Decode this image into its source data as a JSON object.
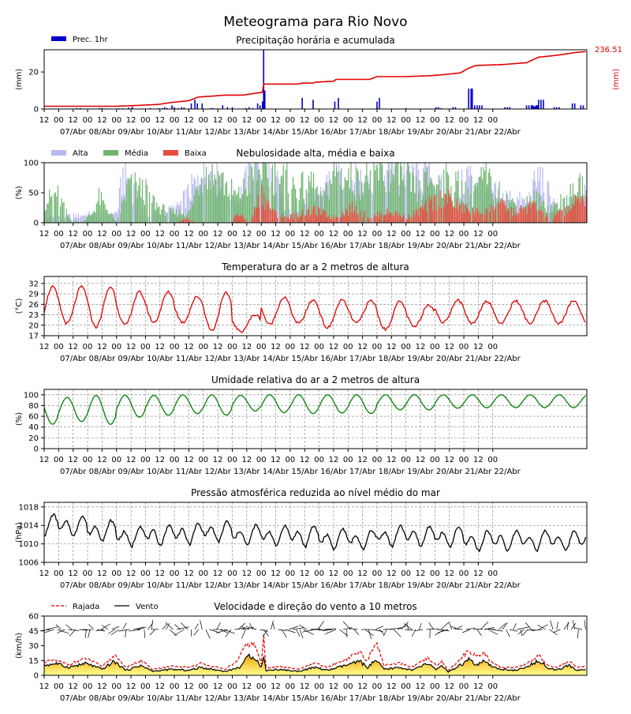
{
  "page": {
    "title": "Meteograma para Rio Novo"
  },
  "time_axis": {
    "start": "2025-04-06 12:00",
    "step_hours": 1,
    "hour_ticks": [
      "12",
      "00",
      "12",
      "00",
      "12",
      "00",
      "12",
      "00",
      "12",
      "00",
      "12",
      "00",
      "12",
      "00",
      "12",
      "00",
      "12",
      "00",
      "12",
      "00",
      "12",
      "00",
      "12",
      "00",
      "12",
      "00",
      "12",
      "00",
      "12",
      "00",
      "12",
      "00"
    ],
    "day_labels": [
      "07/Abr",
      "08/Abr",
      "09/Abr",
      "10/Abr",
      "11/Abr",
      "12/Abr",
      "13/Abr",
      "14/Abr",
      "15/Abr",
      "16/Abr",
      "17/Abr",
      "18/Abr",
      "19/Abr",
      "20/Abr",
      "21/Abr",
      "22/Abr"
    ]
  },
  "chart_data": [
    {
      "id": "precip",
      "type": "bar",
      "title": "Precipitação horária e acumulada",
      "ylabel": "(mm)",
      "ylabel_right": "(mm)",
      "ylim": [
        0,
        32
      ],
      "yticks": [
        0,
        20
      ],
      "grid": false,
      "legend": [
        "Prec. 1hr"
      ],
      "accum_end_label": "236.51",
      "colors": {
        "bars": "#0000cc",
        "accum": "#e00000",
        "right_label": "#e00000"
      },
      "bars": [
        [
          27,
          0.5
        ],
        [
          30,
          0.5
        ],
        [
          46,
          0.5
        ],
        [
          48,
          0.5
        ],
        [
          50,
          0.3
        ],
        [
          62,
          0.4
        ],
        [
          65,
          0.4
        ],
        [
          70,
          0.8
        ],
        [
          73,
          1.2
        ],
        [
          88,
          0.5
        ],
        [
          95,
          0.5
        ],
        [
          98,
          0.5
        ],
        [
          100,
          1.0
        ],
        [
          102,
          0.5
        ],
        [
          106,
          2
        ],
        [
          108,
          1
        ],
        [
          111,
          0.5
        ],
        [
          114,
          1
        ],
        [
          116,
          0.8
        ],
        [
          122,
          3
        ],
        [
          125,
          5
        ],
        [
          127,
          3
        ],
        [
          131,
          3
        ],
        [
          138,
          0.5
        ],
        [
          140,
          0.5
        ],
        [
          148,
          2
        ],
        [
          152,
          1
        ],
        [
          156,
          1
        ],
        [
          167,
          0.5
        ],
        [
          170,
          1
        ],
        [
          173,
          0.5
        ],
        [
          177,
          3
        ],
        [
          179,
          2
        ],
        [
          181,
          4
        ],
        [
          182,
          32
        ],
        [
          183,
          10
        ],
        [
          214,
          6
        ],
        [
          223,
          5
        ],
        [
          241,
          4
        ],
        [
          244,
          6
        ],
        [
          276,
          4
        ],
        [
          278,
          6
        ],
        [
          300,
          0.5
        ],
        [
          325,
          1
        ],
        [
          327,
          1
        ],
        [
          329,
          0.5
        ],
        [
          339,
          1
        ],
        [
          341,
          1
        ],
        [
          352,
          11
        ],
        [
          354,
          11
        ],
        [
          355,
          11
        ],
        [
          357,
          2
        ],
        [
          359,
          2
        ],
        [
          361,
          2
        ],
        [
          363,
          2
        ],
        [
          382,
          1
        ],
        [
          384,
          1
        ],
        [
          386,
          1
        ],
        [
          400,
          2
        ],
        [
          402,
          2
        ],
        [
          404,
          2
        ],
        [
          405,
          2
        ],
        [
          406,
          1.5
        ],
        [
          407,
          1.5
        ],
        [
          408,
          2
        ],
        [
          409,
          2
        ],
        [
          410,
          5
        ],
        [
          412,
          5
        ],
        [
          414,
          5
        ],
        [
          423,
          1
        ],
        [
          425,
          1
        ],
        [
          427,
          1
        ],
        [
          438,
          3
        ],
        [
          440,
          3
        ],
        [
          445,
          2
        ],
        [
          447,
          2
        ]
      ],
      "accum": [
        [
          0,
          1.5
        ],
        [
          60,
          1.5
        ],
        [
          80,
          2.0
        ],
        [
          95,
          2.5
        ],
        [
          105,
          3.5
        ],
        [
          120,
          4.5
        ],
        [
          128,
          6.5
        ],
        [
          140,
          7
        ],
        [
          150,
          7.5
        ],
        [
          165,
          7.5
        ],
        [
          175,
          8.5
        ],
        [
          181,
          9
        ],
        [
          182,
          13.5
        ],
        [
          210,
          13.5
        ],
        [
          214,
          14
        ],
        [
          223,
          14
        ],
        [
          225,
          14.5
        ],
        [
          240,
          15
        ],
        [
          242,
          16
        ],
        [
          270,
          16
        ],
        [
          276,
          17.5
        ],
        [
          300,
          17.5
        ],
        [
          320,
          18
        ],
        [
          330,
          18.5
        ],
        [
          345,
          19.5
        ],
        [
          352,
          22
        ],
        [
          358,
          23.5
        ],
        [
          380,
          24
        ],
        [
          400,
          25
        ],
        [
          410,
          28
        ],
        [
          425,
          29
        ],
        [
          440,
          30.5
        ],
        [
          449,
          31
        ]
      ]
    },
    {
      "id": "clouds",
      "type": "bar",
      "title": "Nebulosidade alta, média e baixa",
      "ylabel": "(%)",
      "ylim": [
        0,
        100
      ],
      "yticks": [
        0,
        50,
        100
      ],
      "grid": false,
      "legend": [
        "Alta",
        "Média",
        "Baixa"
      ],
      "colors": {
        "alta": "#b8b8f0",
        "media": "#6fb46f",
        "baixa": "#e64b3c"
      },
      "alta_keys": [
        [
          0,
          10
        ],
        [
          60,
          20
        ],
        [
          65,
          95
        ],
        [
          75,
          60
        ],
        [
          85,
          10
        ],
        [
          110,
          30
        ],
        [
          120,
          60
        ],
        [
          130,
          100
        ],
        [
          145,
          100
        ],
        [
          160,
          40
        ],
        [
          170,
          100
        ],
        [
          190,
          100
        ],
        [
          200,
          20
        ],
        [
          230,
          60
        ],
        [
          240,
          100
        ],
        [
          260,
          90
        ],
        [
          280,
          100
        ],
        [
          300,
          100
        ],
        [
          320,
          90
        ],
        [
          340,
          40
        ],
        [
          350,
          100
        ],
        [
          370,
          60
        ],
        [
          400,
          40
        ],
        [
          410,
          95
        ],
        [
          425,
          30
        ],
        [
          440,
          40
        ],
        [
          449,
          60
        ]
      ],
      "media_keys": [
        [
          0,
          40
        ],
        [
          10,
          60
        ],
        [
          20,
          10
        ],
        [
          30,
          0
        ],
        [
          40,
          20
        ],
        [
          45,
          50
        ],
        [
          60,
          0
        ],
        [
          70,
          80
        ],
        [
          85,
          60
        ],
        [
          95,
          30
        ],
        [
          105,
          20
        ],
        [
          120,
          20
        ],
        [
          130,
          100
        ],
        [
          145,
          90
        ],
        [
          160,
          50
        ],
        [
          175,
          100
        ],
        [
          195,
          100
        ],
        [
          210,
          60
        ],
        [
          220,
          90
        ],
        [
          230,
          40
        ],
        [
          240,
          100
        ],
        [
          260,
          80
        ],
        [
          275,
          100
        ],
        [
          295,
          100
        ],
        [
          310,
          60
        ],
        [
          320,
          90
        ],
        [
          340,
          80
        ],
        [
          350,
          60
        ],
        [
          365,
          90
        ],
        [
          380,
          50
        ],
        [
          395,
          30
        ],
        [
          405,
          50
        ],
        [
          420,
          30
        ],
        [
          440,
          60
        ],
        [
          449,
          80
        ]
      ],
      "baixa_keys": [
        [
          0,
          0
        ],
        [
          110,
          0
        ],
        [
          118,
          10
        ],
        [
          125,
          0
        ],
        [
          155,
          0
        ],
        [
          160,
          20
        ],
        [
          170,
          0
        ],
        [
          180,
          60
        ],
        [
          190,
          20
        ],
        [
          200,
          10
        ],
        [
          215,
          20
        ],
        [
          225,
          25
        ],
        [
          240,
          10
        ],
        [
          255,
          30
        ],
        [
          270,
          10
        ],
        [
          280,
          20
        ],
        [
          290,
          20
        ],
        [
          300,
          10
        ],
        [
          315,
          30
        ],
        [
          330,
          55
        ],
        [
          345,
          30
        ],
        [
          360,
          20
        ],
        [
          375,
          40
        ],
        [
          390,
          20
        ],
        [
          405,
          35
        ],
        [
          420,
          10
        ],
        [
          435,
          30
        ],
        [
          449,
          55
        ]
      ]
    },
    {
      "id": "temperature",
      "type": "line",
      "title": "Temperatura do ar a 2 metros de altura",
      "ylabel": "(°C)",
      "ylim": [
        17,
        34
      ],
      "yticks": [
        17,
        20,
        23,
        26,
        29,
        32
      ],
      "grid": true,
      "colors": {
        "line": "#e00000"
      },
      "daily_max": [
        31.0,
        31.0,
        31.0,
        29.5,
        29.5,
        28.2,
        29.2,
        23.0,
        28.0,
        27.2,
        27.2,
        27.0,
        26.8,
        26.0,
        27.2,
        27.0
      ],
      "daily_min": [
        19.7,
        20.5,
        19.5,
        20.0,
        20.8,
        20.8,
        18.5,
        18.2,
        20.2,
        20.5,
        19.2,
        20.6,
        18.8,
        19.5,
        20.8,
        20.5
      ],
      "start_value": 25.0
    },
    {
      "id": "humidity",
      "type": "line",
      "title": "Umidade relativa do ar a 2 metros de altura",
      "ylabel": "(%)",
      "ylim": [
        0,
        110
      ],
      "yticks": [
        0,
        20,
        40,
        60,
        80,
        100
      ],
      "grid": true,
      "colors": {
        "line": "#008000"
      },
      "daily_min": [
        45,
        50,
        45,
        58,
        62,
        65,
        62,
        70,
        67,
        65,
        66,
        65,
        72,
        72,
        75,
        76
      ],
      "daily_max": [
        95,
        95,
        99,
        99,
        99,
        100,
        100,
        99,
        100,
        100,
        100,
        100,
        100,
        100,
        100,
        100
      ],
      "start_value": 72
    },
    {
      "id": "pressure",
      "type": "line",
      "title": "Pressão atmosférica reduzida ao nível médio do mar",
      "ylabel": "(hPa)",
      "ylim": [
        1006,
        1019
      ],
      "yticks": [
        1006,
        1010,
        1014,
        1018
      ],
      "grid": true,
      "colors": {
        "line": "#000000"
      },
      "daily_mean": [
        1014.3,
        1014.0,
        1013.0,
        1011.8,
        1012.0,
        1012.3,
        1012.8,
        1012.0,
        1011.9,
        1011.8,
        1011.2,
        1011.0,
        1011.8,
        1011.8,
        1011.6,
        1010.8
      ],
      "amplitude": 2.2,
      "start_value": 1016.8
    },
    {
      "id": "wind",
      "type": "area",
      "title": "Velocidade e direção do vento a 10 metros",
      "ylabel": "(km/h)",
      "ylim": [
        0,
        60
      ],
      "yticks": [
        0,
        15,
        30,
        45,
        60
      ],
      "grid": false,
      "legend": [
        "Rajada",
        "Vento"
      ],
      "colors": {
        "gust": "#e00000",
        "wind": "#000000",
        "fill_low": "#ffff80",
        "fill_high": "#f0a000",
        "arrows": "#000000"
      },
      "wind_keys": [
        [
          0,
          10
        ],
        [
          10,
          12
        ],
        [
          20,
          8
        ],
        [
          35,
          12
        ],
        [
          48,
          6
        ],
        [
          58,
          14
        ],
        [
          68,
          5
        ],
        [
          80,
          10
        ],
        [
          90,
          4
        ],
        [
          105,
          6
        ],
        [
          120,
          5
        ],
        [
          130,
          8
        ],
        [
          140,
          6
        ],
        [
          150,
          4
        ],
        [
          162,
          8
        ],
        [
          170,
          20
        ],
        [
          175,
          18
        ],
        [
          180,
          8
        ],
        [
          182,
          18
        ],
        [
          184,
          5
        ],
        [
          195,
          6
        ],
        [
          210,
          4
        ],
        [
          225,
          8
        ],
        [
          235,
          5
        ],
        [
          250,
          10
        ],
        [
          262,
          14
        ],
        [
          268,
          8
        ],
        [
          275,
          15
        ],
        [
          282,
          6
        ],
        [
          295,
          8
        ],
        [
          305,
          5
        ],
        [
          318,
          12
        ],
        [
          325,
          6
        ],
        [
          330,
          10
        ],
        [
          335,
          3
        ],
        [
          342,
          8
        ],
        [
          348,
          12
        ],
        [
          352,
          16
        ],
        [
          358,
          10
        ],
        [
          365,
          14
        ],
        [
          372,
          8
        ],
        [
          380,
          6
        ],
        [
          392,
          5
        ],
        [
          402,
          9
        ],
        [
          410,
          16
        ],
        [
          418,
          7
        ],
        [
          425,
          5
        ],
        [
          435,
          10
        ],
        [
          442,
          5
        ],
        [
          449,
          6
        ]
      ],
      "gust_keys": [
        [
          0,
          14
        ],
        [
          10,
          15
        ],
        [
          20,
          11
        ],
        [
          35,
          17
        ],
        [
          48,
          9
        ],
        [
          58,
          20
        ],
        [
          68,
          8
        ],
        [
          80,
          15
        ],
        [
          90,
          6
        ],
        [
          105,
          9
        ],
        [
          120,
          8
        ],
        [
          130,
          12
        ],
        [
          140,
          9
        ],
        [
          150,
          6
        ],
        [
          160,
          14
        ],
        [
          168,
          32
        ],
        [
          175,
          30
        ],
        [
          180,
          12
        ],
        [
          182,
          38
        ],
        [
          184,
          8
        ],
        [
          195,
          9
        ],
        [
          210,
          6
        ],
        [
          225,
          12
        ],
        [
          235,
          8
        ],
        [
          250,
          16
        ],
        [
          262,
          24
        ],
        [
          268,
          14
        ],
        [
          275,
          34
        ],
        [
          282,
          10
        ],
        [
          295,
          12
        ],
        [
          305,
          8
        ],
        [
          318,
          17
        ],
        [
          325,
          10
        ],
        [
          330,
          14
        ],
        [
          335,
          5
        ],
        [
          342,
          12
        ],
        [
          348,
          20
        ],
        [
          352,
          25
        ],
        [
          358,
          20
        ],
        [
          365,
          22
        ],
        [
          372,
          12
        ],
        [
          380,
          8
        ],
        [
          392,
          8
        ],
        [
          402,
          13
        ],
        [
          410,
          20
        ],
        [
          418,
          10
        ],
        [
          425,
          8
        ],
        [
          435,
          14
        ],
        [
          442,
          8
        ],
        [
          449,
          9
        ]
      ]
    }
  ]
}
